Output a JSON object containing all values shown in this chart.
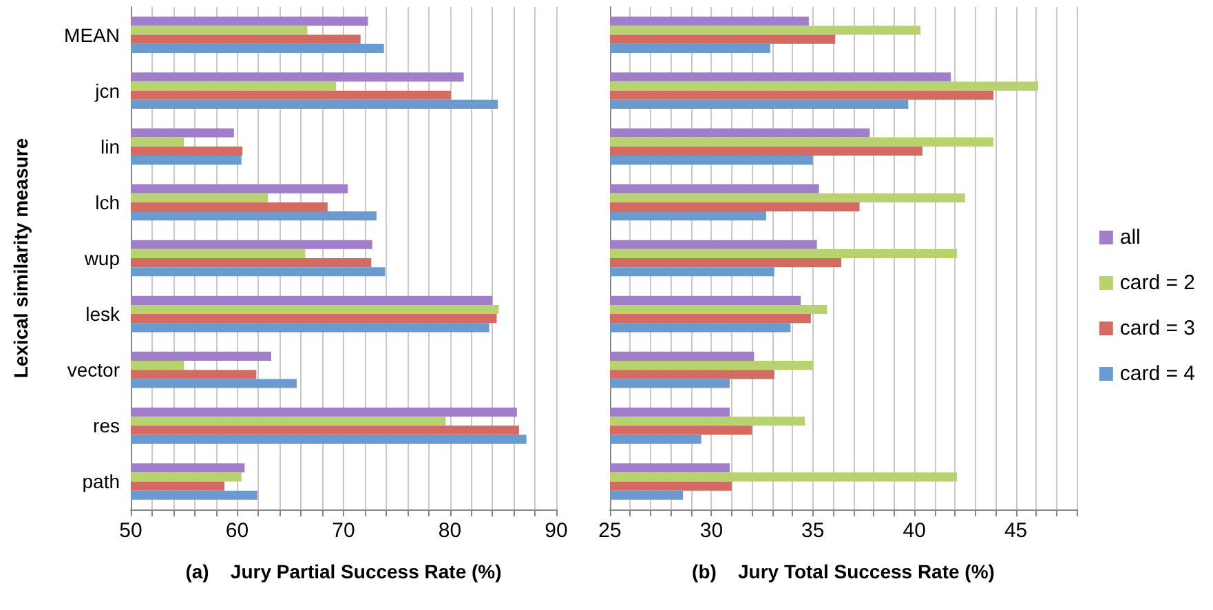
{
  "chart_data": [
    {
      "type": "bar",
      "orientation": "horizontal",
      "xlabel": "(a)    Jury Partial Success Rate (%)",
      "ylabel": "Lexical similarity measure",
      "categories": [
        "MEAN",
        "jcn",
        "lin",
        "lch",
        "wup",
        "lesk",
        "vector",
        "res",
        "path"
      ],
      "series": [
        {
          "color": "#a07ec9",
          "values": [
            72.3,
            81.3,
            59.7,
            70.4,
            72.7,
            84.0,
            63.2,
            86.3,
            60.7
          ]
        },
        {
          "color": "#b7d26f",
          "values": [
            66.6,
            69.3,
            55.0,
            62.9,
            66.4,
            84.6,
            55.0,
            79.6,
            60.4
          ]
        },
        {
          "color": "#d46b63",
          "values": [
            71.6,
            80.1,
            60.5,
            68.5,
            72.6,
            84.4,
            61.8,
            86.5,
            58.8
          ]
        },
        {
          "color": "#6b9bce",
          "values": [
            73.8,
            84.5,
            60.4,
            73.1,
            73.9,
            83.7,
            65.6,
            87.2,
            61.9
          ]
        }
      ],
      "xlim": [
        50,
        90
      ],
      "xticks": [
        50,
        {
          "value": 52,
          "label": null
        },
        {
          "value": 54,
          "label": null
        },
        {
          "value": 56,
          "label": null
        },
        {
          "value": 58,
          "label": null
        },
        60,
        {
          "value": 62,
          "label": null
        },
        {
          "value": 64,
          "label": null
        },
        {
          "value": 66,
          "label": null
        },
        {
          "value": 68,
          "label": null
        },
        70,
        {
          "value": 72,
          "label": null
        },
        {
          "value": 74,
          "label": null
        },
        {
          "value": 76,
          "label": null
        },
        {
          "value": 78,
          "label": null
        },
        80,
        {
          "value": 82,
          "label": null
        },
        {
          "value": 84,
          "label": null
        },
        {
          "value": 86,
          "label": null
        },
        {
          "value": 88,
          "label": null
        },
        90
      ],
      "grid": "x",
      "legend": false
    },
    {
      "type": "bar",
      "orientation": "horizontal",
      "xlabel": "(b)    Jury Total Success Rate (%)",
      "categories": [
        null,
        null,
        null,
        null,
        null,
        null,
        null,
        null,
        null
      ],
      "series": [
        {
          "name": "all",
          "color": "#a07ec9",
          "values": [
            34.8,
            41.8,
            37.8,
            35.3,
            35.2,
            34.4,
            32.1,
            30.9,
            30.9
          ]
        },
        {
          "name": "card = 2",
          "color": "#b7d26f",
          "values": [
            40.3,
            46.1,
            43.9,
            42.5,
            42.1,
            35.7,
            35.0,
            34.6,
            42.1
          ]
        },
        {
          "name": "card = 3",
          "color": "#d46b63",
          "values": [
            36.1,
            43.9,
            40.4,
            37.3,
            36.4,
            34.9,
            33.1,
            32.0,
            31.0
          ]
        },
        {
          "name": "card = 4",
          "color": "#6b9bce",
          "values": [
            32.9,
            39.7,
            35.0,
            32.7,
            33.1,
            33.9,
            30.9,
            29.5,
            28.6
          ]
        }
      ],
      "xlim": [
        25,
        48
      ],
      "xticks": [
        25,
        {
          "value": 26,
          "label": null
        },
        {
          "value": 27,
          "label": null
        },
        {
          "value": 28,
          "label": null
        },
        {
          "value": 29,
          "label": null
        },
        30,
        {
          "value": 31,
          "label": null
        },
        {
          "value": 32,
          "label": null
        },
        {
          "value": 33,
          "label": null
        },
        {
          "value": 34,
          "label": null
        },
        35,
        {
          "value": 36,
          "label": null
        },
        {
          "value": 37,
          "label": null
        },
        {
          "value": 38,
          "label": null
        },
        {
          "value": 39,
          "label": null
        },
        40,
        {
          "value": 41,
          "label": null
        },
        {
          "value": 42,
          "label": null
        },
        {
          "value": 43,
          "label": null
        },
        {
          "value": 44,
          "label": null
        },
        45,
        {
          "value": 46,
          "label": null
        },
        {
          "value": 47,
          "label": null
        },
        {
          "value": 48,
          "label": null
        }
      ],
      "grid": "x",
      "legend": "right"
    }
  ]
}
